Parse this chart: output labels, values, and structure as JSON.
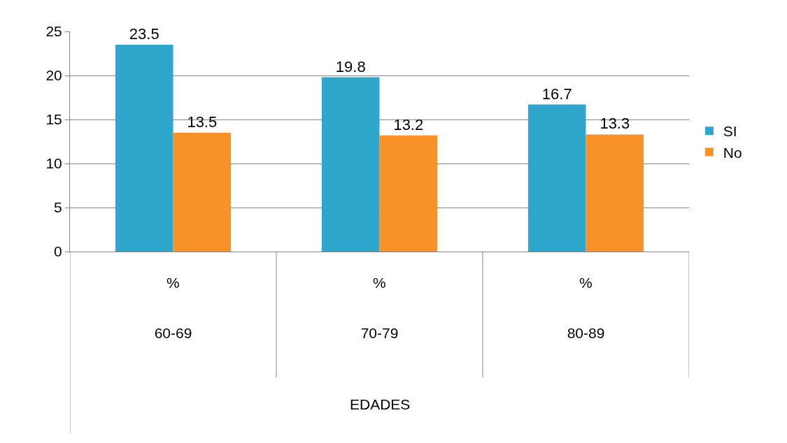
{
  "chart_data": {
    "type": "bar",
    "categories": [
      "60-69",
      "70-79",
      "80-89"
    ],
    "series": [
      {
        "name": "SI",
        "color": "#2fa6cb",
        "values": [
          23.5,
          19.8,
          16.7
        ]
      },
      {
        "name": "No",
        "color": "#f7922a",
        "values": [
          13.5,
          13.2,
          13.3
        ]
      }
    ],
    "ylim": [
      0,
      25
    ],
    "yticks": [
      0,
      5,
      10,
      15,
      20,
      25
    ],
    "grid": "y",
    "legend": "right",
    "data_labels": true,
    "xlabel": "EDADES",
    "annotations": [
      "%",
      "%",
      "%"
    ]
  }
}
